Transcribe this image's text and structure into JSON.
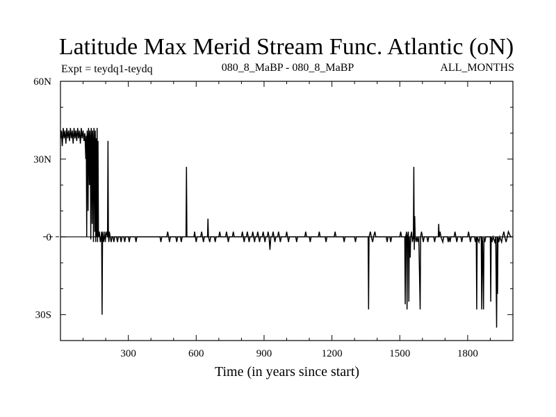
{
  "header": {
    "title": "Latitude Max Merid Stream Func. Atlantic (oN)",
    "expt": "Expt = teydq1-teydq",
    "subtitle": "080_8_MaBP - 080_8_MaBP",
    "period": "ALL_MONTHS"
  },
  "chart_data": {
    "type": "line",
    "title": "Latitude Max Merid Stream Func. Atlantic (oN)",
    "xlabel": "Time (in years since start)",
    "ylabel": "",
    "xlim": [
      0,
      2000
    ],
    "ylim": [
      -40,
      60
    ],
    "x_ticks": [
      300,
      600,
      900,
      1200,
      1500,
      1800
    ],
    "y_ticks": [
      {
        "value": 60,
        "label": "60N"
      },
      {
        "value": 30,
        "label": "30N"
      },
      {
        "value": 0,
        "label": "0"
      },
      {
        "value": -30,
        "label": "30S"
      }
    ],
    "zero_line_style": "dashed outside plot",
    "line_color": "#000000",
    "series": [
      {
        "points": [
          [
            0,
            38
          ],
          [
            4,
            41
          ],
          [
            8,
            35
          ],
          [
            12,
            42
          ],
          [
            16,
            38
          ],
          [
            20,
            41
          ],
          [
            24,
            36
          ],
          [
            28,
            42
          ],
          [
            32,
            38
          ],
          [
            36,
            41
          ],
          [
            40,
            37
          ],
          [
            44,
            42
          ],
          [
            48,
            38
          ],
          [
            52,
            41
          ],
          [
            56,
            36
          ],
          [
            60,
            42
          ],
          [
            64,
            38
          ],
          [
            68,
            41
          ],
          [
            72,
            37
          ],
          [
            76,
            42
          ],
          [
            80,
            38
          ],
          [
            84,
            41
          ],
          [
            88,
            36
          ],
          [
            92,
            42
          ],
          [
            96,
            38
          ],
          [
            100,
            41
          ],
          [
            104,
            37
          ],
          [
            108,
            40
          ],
          [
            112,
            30
          ],
          [
            114,
            39
          ],
          [
            116,
            0
          ],
          [
            118,
            41
          ],
          [
            120,
            38
          ],
          [
            122,
            10
          ],
          [
            124,
            42
          ],
          [
            126,
            38
          ],
          [
            128,
            20
          ],
          [
            130,
            41
          ],
          [
            132,
            37
          ],
          [
            134,
            -1
          ],
          [
            136,
            42
          ],
          [
            138,
            38
          ],
          [
            140,
            5
          ],
          [
            142,
            41
          ],
          [
            144,
            36
          ],
          [
            146,
            -2
          ],
          [
            148,
            42
          ],
          [
            150,
            38
          ],
          [
            152,
            2
          ],
          [
            154,
            41
          ],
          [
            156,
            -2
          ],
          [
            158,
            38
          ],
          [
            160,
            0
          ],
          [
            162,
            42
          ],
          [
            164,
            -2
          ],
          [
            166,
            37
          ],
          [
            168,
            0
          ],
          [
            172,
            2
          ],
          [
            176,
            -2
          ],
          [
            180,
            0
          ],
          [
            182,
            2
          ],
          [
            184,
            -30
          ],
          [
            186,
            0
          ],
          [
            188,
            2
          ],
          [
            190,
            -2
          ],
          [
            194,
            0
          ],
          [
            196,
            2
          ],
          [
            198,
            -2
          ],
          [
            200,
            0
          ],
          [
            204,
            2
          ],
          [
            208,
            0
          ],
          [
            210,
            37
          ],
          [
            212,
            0
          ],
          [
            214,
            -2
          ],
          [
            216,
            2
          ],
          [
            220,
            0
          ],
          [
            224,
            -2
          ],
          [
            228,
            0
          ],
          [
            232,
            0
          ],
          [
            236,
            -2
          ],
          [
            240,
            0
          ],
          [
            248,
            0
          ],
          [
            252,
            -2
          ],
          [
            256,
            0
          ],
          [
            264,
            0
          ],
          [
            268,
            -2
          ],
          [
            272,
            0
          ],
          [
            280,
            0
          ],
          [
            284,
            -2
          ],
          [
            288,
            0
          ],
          [
            300,
            0
          ],
          [
            304,
            -2
          ],
          [
            308,
            0
          ],
          [
            330,
            0
          ],
          [
            334,
            -2
          ],
          [
            338,
            0
          ],
          [
            440,
            0
          ],
          [
            444,
            -2
          ],
          [
            448,
            0
          ],
          [
            470,
            0
          ],
          [
            474,
            2
          ],
          [
            478,
            0
          ],
          [
            482,
            -2
          ],
          [
            486,
            0
          ],
          [
            510,
            0
          ],
          [
            514,
            -2
          ],
          [
            518,
            0
          ],
          [
            530,
            0
          ],
          [
            534,
            -2
          ],
          [
            538,
            0
          ],
          [
            555,
            0
          ],
          [
            557,
            27
          ],
          [
            559,
            0
          ],
          [
            590,
            0
          ],
          [
            593,
            2
          ],
          [
            596,
            0
          ],
          [
            600,
            -2
          ],
          [
            604,
            0
          ],
          [
            620,
            0
          ],
          [
            624,
            2
          ],
          [
            628,
            0
          ],
          [
            632,
            -2
          ],
          [
            636,
            0
          ],
          [
            650,
            0
          ],
          [
            652,
            7
          ],
          [
            654,
            0
          ],
          [
            660,
            -2
          ],
          [
            664,
            0
          ],
          [
            680,
            0
          ],
          [
            684,
            -2
          ],
          [
            688,
            0
          ],
          [
            700,
            0
          ],
          [
            704,
            2
          ],
          [
            708,
            0
          ],
          [
            730,
            0
          ],
          [
            734,
            2
          ],
          [
            738,
            0
          ],
          [
            742,
            -2
          ],
          [
            746,
            0
          ],
          [
            760,
            0
          ],
          [
            764,
            2
          ],
          [
            768,
            0
          ],
          [
            800,
            0
          ],
          [
            804,
            2
          ],
          [
            808,
            0
          ],
          [
            812,
            -2
          ],
          [
            816,
            0
          ],
          [
            822,
            0
          ],
          [
            826,
            2
          ],
          [
            830,
            0
          ],
          [
            834,
            -2
          ],
          [
            838,
            0
          ],
          [
            846,
            0
          ],
          [
            850,
            2
          ],
          [
            854,
            0
          ],
          [
            858,
            -2
          ],
          [
            862,
            0
          ],
          [
            868,
            0
          ],
          [
            872,
            2
          ],
          [
            876,
            0
          ],
          [
            880,
            -2
          ],
          [
            884,
            0
          ],
          [
            892,
            0
          ],
          [
            896,
            2
          ],
          [
            900,
            0
          ],
          [
            904,
            -2
          ],
          [
            908,
            0
          ],
          [
            914,
            0
          ],
          [
            918,
            2
          ],
          [
            922,
            0
          ],
          [
            926,
            -5
          ],
          [
            930,
            0
          ],
          [
            936,
            0
          ],
          [
            940,
            2
          ],
          [
            944,
            0
          ],
          [
            948,
            -2
          ],
          [
            952,
            0
          ],
          [
            960,
            0
          ],
          [
            964,
            2
          ],
          [
            968,
            0
          ],
          [
            972,
            -2
          ],
          [
            976,
            0
          ],
          [
            996,
            0
          ],
          [
            1000,
            2
          ],
          [
            1004,
            0
          ],
          [
            1008,
            -2
          ],
          [
            1012,
            0
          ],
          [
            1040,
            0
          ],
          [
            1044,
            -2
          ],
          [
            1048,
            0
          ],
          [
            1080,
            0
          ],
          [
            1084,
            2
          ],
          [
            1088,
            0
          ],
          [
            1100,
            0
          ],
          [
            1104,
            -2
          ],
          [
            1108,
            0
          ],
          [
            1140,
            0
          ],
          [
            1144,
            2
          ],
          [
            1148,
            0
          ],
          [
            1170,
            0
          ],
          [
            1174,
            -2
          ],
          [
            1178,
            0
          ],
          [
            1210,
            0
          ],
          [
            1214,
            2
          ],
          [
            1218,
            0
          ],
          [
            1250,
            0
          ],
          [
            1254,
            -2
          ],
          [
            1258,
            0
          ],
          [
            1300,
            0
          ],
          [
            1304,
            -2
          ],
          [
            1308,
            0
          ],
          [
            1360,
            0
          ],
          [
            1362,
            -28
          ],
          [
            1364,
            0
          ],
          [
            1370,
            2
          ],
          [
            1374,
            0
          ],
          [
            1380,
            -2
          ],
          [
            1384,
            0
          ],
          [
            1390,
            2
          ],
          [
            1394,
            0
          ],
          [
            1440,
            0
          ],
          [
            1444,
            -2
          ],
          [
            1448,
            0
          ],
          [
            1456,
            0
          ],
          [
            1460,
            -2
          ],
          [
            1464,
            0
          ],
          [
            1500,
            0
          ],
          [
            1504,
            2
          ],
          [
            1508,
            0
          ],
          [
            1522,
            0
          ],
          [
            1524,
            -26
          ],
          [
            1526,
            0
          ],
          [
            1530,
            2
          ],
          [
            1532,
            -28
          ],
          [
            1534,
            0
          ],
          [
            1538,
            2
          ],
          [
            1540,
            -25
          ],
          [
            1542,
            0
          ],
          [
            1546,
            -8
          ],
          [
            1548,
            0
          ],
          [
            1552,
            2
          ],
          [
            1556,
            -2
          ],
          [
            1560,
            0
          ],
          [
            1562,
            27
          ],
          [
            1564,
            -5
          ],
          [
            1566,
            8
          ],
          [
            1568,
            0
          ],
          [
            1572,
            -2
          ],
          [
            1576,
            0
          ],
          [
            1580,
            -2
          ],
          [
            1584,
            0
          ],
          [
            1590,
            -28
          ],
          [
            1592,
            0
          ],
          [
            1596,
            2
          ],
          [
            1600,
            0
          ],
          [
            1604,
            -2
          ],
          [
            1608,
            0
          ],
          [
            1620,
            0
          ],
          [
            1624,
            -2
          ],
          [
            1628,
            0
          ],
          [
            1650,
            0
          ],
          [
            1654,
            -2
          ],
          [
            1658,
            0
          ],
          [
            1670,
            0
          ],
          [
            1672,
            5
          ],
          [
            1674,
            0
          ],
          [
            1678,
            2
          ],
          [
            1682,
            0
          ],
          [
            1690,
            -2
          ],
          [
            1694,
            0
          ],
          [
            1710,
            0
          ],
          [
            1714,
            -2
          ],
          [
            1718,
            0
          ],
          [
            1722,
            -2
          ],
          [
            1726,
            0
          ],
          [
            1740,
            0
          ],
          [
            1744,
            2
          ],
          [
            1748,
            0
          ],
          [
            1752,
            -2
          ],
          [
            1756,
            0
          ],
          [
            1770,
            0
          ],
          [
            1774,
            -2
          ],
          [
            1778,
            0
          ],
          [
            1800,
            0
          ],
          [
            1804,
            2
          ],
          [
            1808,
            0
          ],
          [
            1812,
            -2
          ],
          [
            1816,
            0
          ],
          [
            1830,
            0
          ],
          [
            1834,
            -2
          ],
          [
            1838,
            0
          ],
          [
            1840,
            -28
          ],
          [
            1842,
            0
          ],
          [
            1850,
            -2
          ],
          [
            1854,
            0
          ],
          [
            1860,
            0
          ],
          [
            1862,
            -28
          ],
          [
            1864,
            0
          ],
          [
            1866,
            -2
          ],
          [
            1870,
            -28
          ],
          [
            1872,
            0
          ],
          [
            1876,
            -2
          ],
          [
            1880,
            0
          ],
          [
            1900,
            0
          ],
          [
            1902,
            -25
          ],
          [
            1904,
            0
          ],
          [
            1908,
            -2
          ],
          [
            1912,
            0
          ],
          [
            1920,
            -2
          ],
          [
            1924,
            0
          ],
          [
            1928,
            -35
          ],
          [
            1930,
            0
          ],
          [
            1932,
            -22
          ],
          [
            1934,
            0
          ],
          [
            1938,
            -2
          ],
          [
            1942,
            0
          ],
          [
            1950,
            -2
          ],
          [
            1954,
            0
          ],
          [
            1960,
            2
          ],
          [
            1964,
            0
          ],
          [
            1970,
            -2
          ],
          [
            1975,
            0
          ],
          [
            1980,
            2
          ],
          [
            1990,
            0
          ],
          [
            2000,
            0
          ]
        ]
      }
    ]
  }
}
